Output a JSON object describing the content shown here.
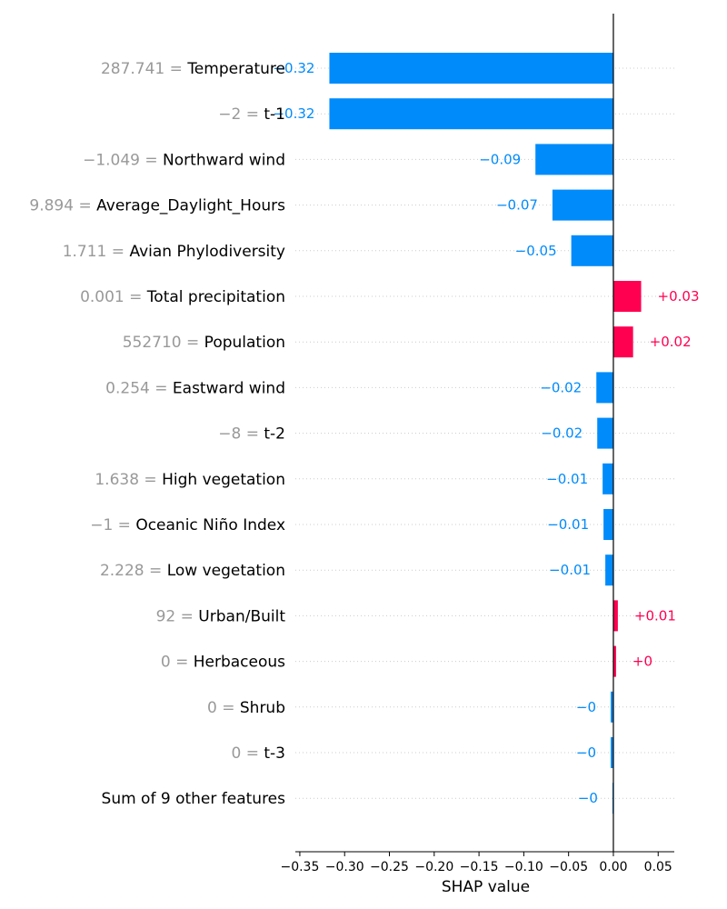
{
  "chart_data": {
    "type": "bar",
    "xlabel": "SHAP value",
    "xlim": [
      -0.355,
      0.068
    ],
    "xticks": [
      "−0.35",
      "−0.30",
      "−0.25",
      "−0.20",
      "−0.15",
      "−0.10",
      "−0.05",
      "0.00",
      "0.05"
    ],
    "xtick_values": [
      -0.35,
      -0.3,
      -0.25,
      -0.2,
      -0.15,
      -0.1,
      -0.05,
      0.0,
      0.05
    ],
    "grid": "horizontal dotted",
    "colors": {
      "negative": "#008bfb",
      "positive": "#ff0051",
      "feature_value": "#999999",
      "zero_line": "#000000"
    },
    "features": [
      {
        "value_text": "287.741",
        "name": "Temperature",
        "shap": -0.317,
        "label": "−0.32"
      },
      {
        "value_text": "−2",
        "name": "t-1",
        "shap": -0.317,
        "label": "−0.32"
      },
      {
        "value_text": "−1.049",
        "name": "Northward wind",
        "shap": -0.087,
        "label": "−0.09"
      },
      {
        "value_text": "9.894",
        "name": "Average_Daylight_Hours",
        "shap": -0.068,
        "label": "−0.07"
      },
      {
        "value_text": "1.711",
        "name": "Avian Phylodiversity",
        "shap": -0.047,
        "label": "−0.05"
      },
      {
        "value_text": "0.001",
        "name": "Total precipitation",
        "shap": 0.031,
        "label": "+0.03"
      },
      {
        "value_text": "552710",
        "name": "Population",
        "shap": 0.022,
        "label": "+0.02"
      },
      {
        "value_text": "0.254",
        "name": "Eastward wind",
        "shap": -0.019,
        "label": "−0.02"
      },
      {
        "value_text": "−8",
        "name": "t-2",
        "shap": -0.018,
        "label": "−0.02"
      },
      {
        "value_text": "1.638",
        "name": "High vegetation",
        "shap": -0.012,
        "label": "−0.01"
      },
      {
        "value_text": "−1",
        "name": "Oceanic Niño Index",
        "shap": -0.011,
        "label": "−0.01"
      },
      {
        "value_text": "2.228",
        "name": "Low vegetation",
        "shap": -0.009,
        "label": "−0.01"
      },
      {
        "value_text": "92",
        "name": "Urban/Built",
        "shap": 0.005,
        "label": "+0.01"
      },
      {
        "value_text": "0",
        "name": "Herbaceous",
        "shap": 0.003,
        "label": "+0"
      },
      {
        "value_text": "0",
        "name": "Shrub",
        "shap": -0.003,
        "label": "−0"
      },
      {
        "value_text": "0",
        "name": "t-3",
        "shap": -0.003,
        "label": "−0"
      },
      {
        "value_text": "",
        "name": "Sum of 9 other features",
        "shap": -0.001,
        "label": "−0"
      }
    ]
  }
}
